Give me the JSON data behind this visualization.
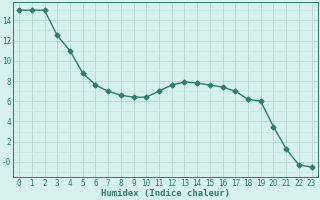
{
  "x": [
    0,
    1,
    2,
    3,
    4,
    5,
    6,
    7,
    8,
    9,
    10,
    11,
    12,
    13,
    14,
    15,
    16,
    17,
    18,
    19,
    20,
    21,
    22,
    23
  ],
  "y": [
    15.0,
    15.0,
    15.0,
    12.5,
    11.0,
    8.8,
    7.6,
    7.0,
    6.6,
    6.4,
    6.4,
    7.0,
    7.6,
    7.9,
    7.8,
    7.6,
    7.4,
    7.0,
    6.2,
    6.0,
    3.5,
    1.3,
    -0.3,
    -0.5
  ],
  "line_color": "#2e7d6e",
  "marker": "D",
  "marker_size": 2.5,
  "bg_color": "#d6f0ee",
  "grid_color_major": "#b8d4d0",
  "grid_color_minor": "#c8e0dc",
  "xlabel": "Humidex (Indice chaleur)",
  "ylim": [
    -1.5,
    15.8
  ],
  "xlim": [
    -0.5,
    23.5
  ],
  "yticks": [
    0,
    2,
    4,
    6,
    8,
    10,
    12,
    14
  ],
  "ytick_labels": [
    "-0",
    "2",
    "4",
    "6",
    "8",
    "10",
    "12",
    "14"
  ],
  "xticks": [
    0,
    1,
    2,
    3,
    4,
    5,
    6,
    7,
    8,
    9,
    10,
    11,
    12,
    13,
    14,
    15,
    16,
    17,
    18,
    19,
    20,
    21,
    22,
    23
  ],
  "label_fontsize": 6.5,
  "tick_fontsize": 5.5
}
